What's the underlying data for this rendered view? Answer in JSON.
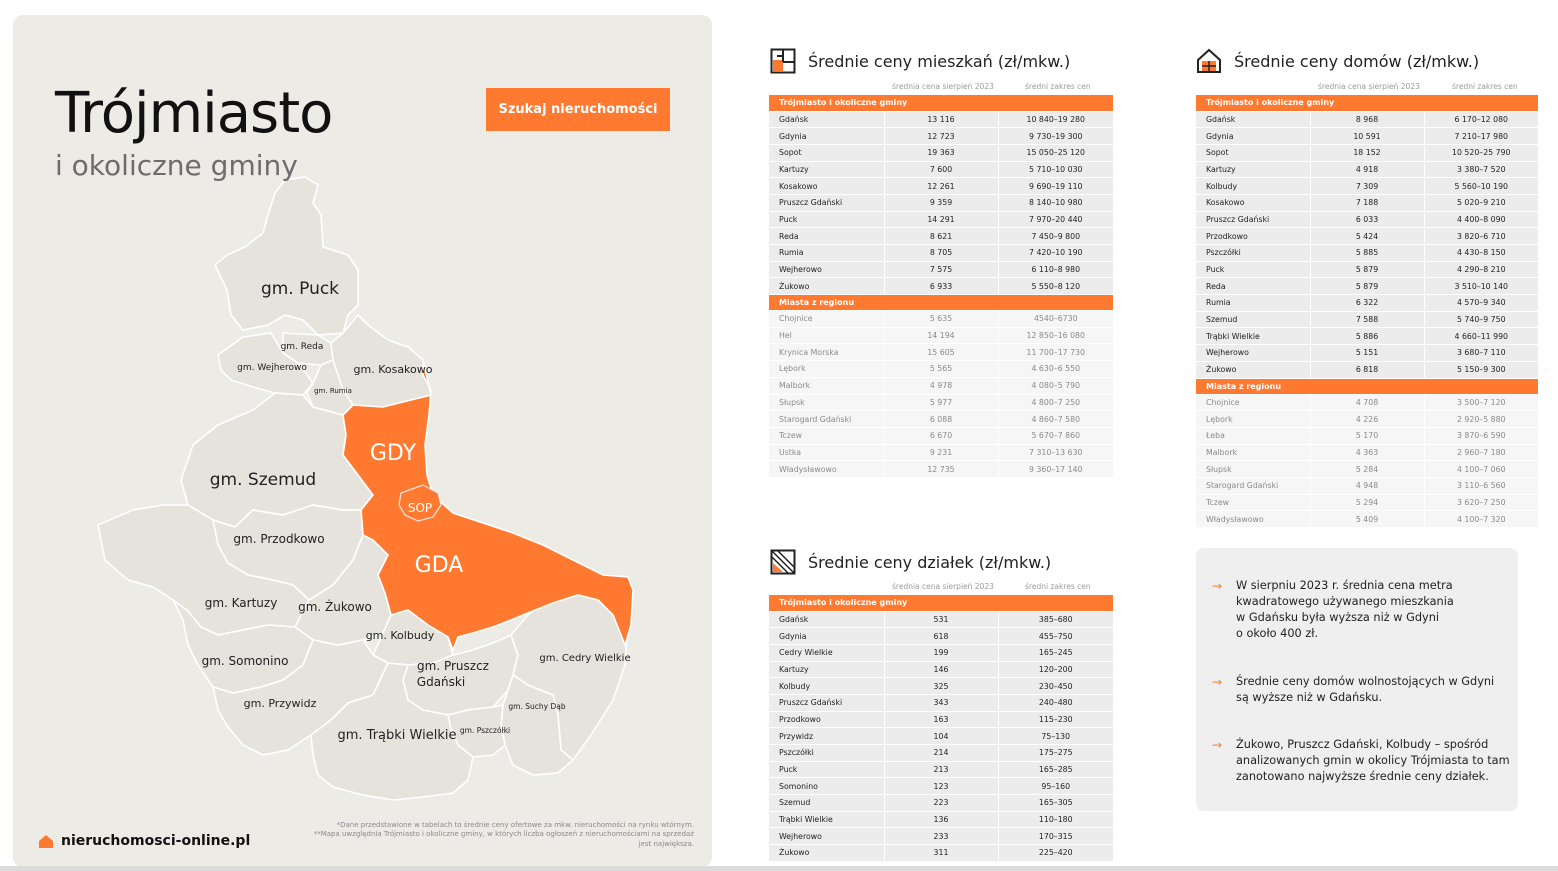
{
  "map_panel": {
    "title": "Trójmiasto",
    "subtitle": "i okoliczne gminy",
    "search_button": "Szukaj nieruchomości",
    "brand": "nieruchomosci-online.pl",
    "footnote_1": "*Dane przedstawione w tabelach to średnie ceny ofertowe za mkw. nieruchomości na rynku wtórnym.",
    "footnote_2": "**Mapa uwzględnia Trójmiasto i okoliczne gminy, w których liczba ogłoszeń z nieruchomościami na sprzedaż jest największa.",
    "regions": {
      "puck": "gm. Puck",
      "reda": "gm. Reda",
      "wejherowo": "gm. Wejherowo",
      "kosakowo": "gm. Kosakowo",
      "rumia": "gm. Rumia",
      "gdy": "GDY",
      "sop": "SOP",
      "gda": "GDA",
      "szemud": "gm. Szemud",
      "przodkowo": "gm. Przodkowo",
      "kartuzy": "gm. Kartuzy",
      "zukowo": "gm. Żukowo",
      "kolbudy": "gm. Kolbudy",
      "somonino": "gm. Somonino",
      "pruszcz_1": "gm. Pruszcz",
      "pruszcz_2": "Gdański",
      "cedry": "gm. Cedry Wielkie",
      "przywidz": "gm. Przywidz",
      "suchy_dab": "gm. Suchy Dąb",
      "pszczolki": "gm. Pszczółki",
      "trabki": "gm. Trąbki Wielkie"
    },
    "colors": {
      "accent": "#ff7a30",
      "region_fill": "#e6e3dd",
      "panel": "#ecebe6"
    }
  },
  "col_header_price": "średnia cena sierpień 2023",
  "col_header_range": "średni zakres cen",
  "apartments": {
    "title": "Średnie ceny mieszkań (zł/mkw.)",
    "icon": "floorplan-icon",
    "group_1": "Trójmiasto i okoliczne gminy",
    "group_2": "Miasta z regionu",
    "rows_1": [
      [
        "Gdańsk",
        "13 116",
        "10 840–19 280"
      ],
      [
        "Gdynia",
        "12 723",
        "9 730–19 300"
      ],
      [
        "Sopot",
        "19 363",
        "15 050–25 120"
      ],
      [
        "Kartuzy",
        "7 600",
        "5 710–10 030"
      ],
      [
        "Kosakowo",
        "12 261",
        "9 690–19 110"
      ],
      [
        "Pruszcz Gdański",
        "9 359",
        "8 140–10 980"
      ],
      [
        "Puck",
        "14 291",
        "7 970–20 440"
      ],
      [
        "Reda",
        "8 621",
        "7 450–9 800"
      ],
      [
        "Rumia",
        "8 705",
        "7 420–10 190"
      ],
      [
        "Wejherowo",
        "7 575",
        "6 110–8 980"
      ],
      [
        "Żukowo",
        "6 933",
        "5 550–8 120"
      ]
    ],
    "rows_2": [
      [
        "Chojnice",
        "5 635",
        "4540–6730"
      ],
      [
        "Hel",
        "14 194",
        "12 850–16 080"
      ],
      [
        "Krynica Morska",
        "15 605",
        "11 700–17 730"
      ],
      [
        "Lębork",
        "5 565",
        "4 630–6 550"
      ],
      [
        "Malbork",
        "4 978",
        "4 080–5 790"
      ],
      [
        "Słupsk",
        "5 977",
        "4 800–7 250"
      ],
      [
        "Starogard Gdański",
        "6 088",
        "4 860–7 580"
      ],
      [
        "Tczew",
        "6 670",
        "5 670–7 860"
      ],
      [
        "Ustka",
        "9 231",
        "7 310–13 630"
      ],
      [
        "Władysławowo",
        "12 735",
        "9 360–17 140"
      ]
    ]
  },
  "houses": {
    "title": "Średnie ceny domów (zł/mkw.)",
    "icon": "house-icon",
    "group_1": "Trójmiasto i okoliczne gminy",
    "group_2": "Miasta z regionu",
    "rows_1": [
      [
        "Gdańsk",
        "8 968",
        "6 170–12 080"
      ],
      [
        "Gdynia",
        "10 591",
        "7 210–17 980"
      ],
      [
        "Sopot",
        "18 152",
        "10 520–25 790"
      ],
      [
        "Kartuzy",
        "4 918",
        "3 380–7 520"
      ],
      [
        "Kolbudy",
        "7 309",
        "5 560–10 190"
      ],
      [
        "Kosakowo",
        "7 188",
        "5 020–9 210"
      ],
      [
        "Pruszcz Gdański",
        "6 033",
        "4 400–8 090"
      ],
      [
        "Przodkowo",
        "5 424",
        "3 820–6 710"
      ],
      [
        "Pszczółki",
        "5 885",
        "4 430–8 150"
      ],
      [
        "Puck",
        "5 879",
        "4 290–8 210"
      ],
      [
        "Reda",
        "5 879",
        "3 510–10 140"
      ],
      [
        "Rumia",
        "6 322",
        "4 570–9 340"
      ],
      [
        "Szemud",
        "7 588",
        "5 740–9 750"
      ],
      [
        "Trąbki Wielkie",
        "5 886",
        "4 660–11 990"
      ],
      [
        "Wejherowo",
        "5 151",
        "3 680–7 110"
      ],
      [
        "Żukowo",
        "6 818",
        "5 150–9 300"
      ]
    ],
    "rows_2": [
      [
        "Chojnice",
        "4 708",
        "3 500–7 120"
      ],
      [
        "Lębork",
        "4 226",
        "2 920–5 880"
      ],
      [
        "Łeba",
        "5 170",
        "3 870–6 590"
      ],
      [
        "Malbork",
        "4 363",
        "2 960–7 180"
      ],
      [
        "Słupsk",
        "5 284",
        "4 100–7 060"
      ],
      [
        "Starogard Gdański",
        "4 948",
        "3 110–6 560"
      ],
      [
        "Tczew",
        "5 294",
        "3 620–7 250"
      ],
      [
        "Władysławowo",
        "5 409",
        "4 100–7 320"
      ]
    ]
  },
  "plots": {
    "title": "Średnie ceny działek (zł/mkw.)",
    "icon": "plot-icon",
    "group_1": "Trójmiasto i okoliczne gminy",
    "rows_1": [
      [
        "Gdańsk",
        "531",
        "385–680"
      ],
      [
        "Gdynia",
        "618",
        "455–750"
      ],
      [
        "Cedry Wielkie",
        "199",
        "165–245"
      ],
      [
        "Kartuzy",
        "146",
        "120–200"
      ],
      [
        "Kolbudy",
        "325",
        "230–450"
      ],
      [
        "Pruszcz Gdański",
        "343",
        "240–480"
      ],
      [
        "Przodkowo",
        "163",
        "115–230"
      ],
      [
        "Przywidz",
        "104",
        "75–130"
      ],
      [
        "Pszczółki",
        "214",
        "175–275"
      ],
      [
        "Puck",
        "213",
        "165–285"
      ],
      [
        "Somonino",
        "123",
        "95–160"
      ],
      [
        "Szemud",
        "223",
        "165–305"
      ],
      [
        "Trąbki Wielkie",
        "136",
        "110–180"
      ],
      [
        "Wejherowo",
        "233",
        "170–315"
      ],
      [
        "Żukowo",
        "311",
        "225–420"
      ]
    ]
  },
  "insights": [
    "W sierpniu 2023 r. średnia cena metra\nkwadratowego używanego mieszkania\nw Gdańsku była wyższa niż w Gdyni\no około 400 zł.",
    "Średnie ceny domów wolnostojących w Gdyni\nsą wyższe niż w Gdańsku.",
    "Żukowo, Pruszcz Gdański, Kolbudy – spośród\nanalizowanych gmin w okolicy Trójmiasta to tam\nzanotowano najwyższe średnie ceny działek."
  ]
}
